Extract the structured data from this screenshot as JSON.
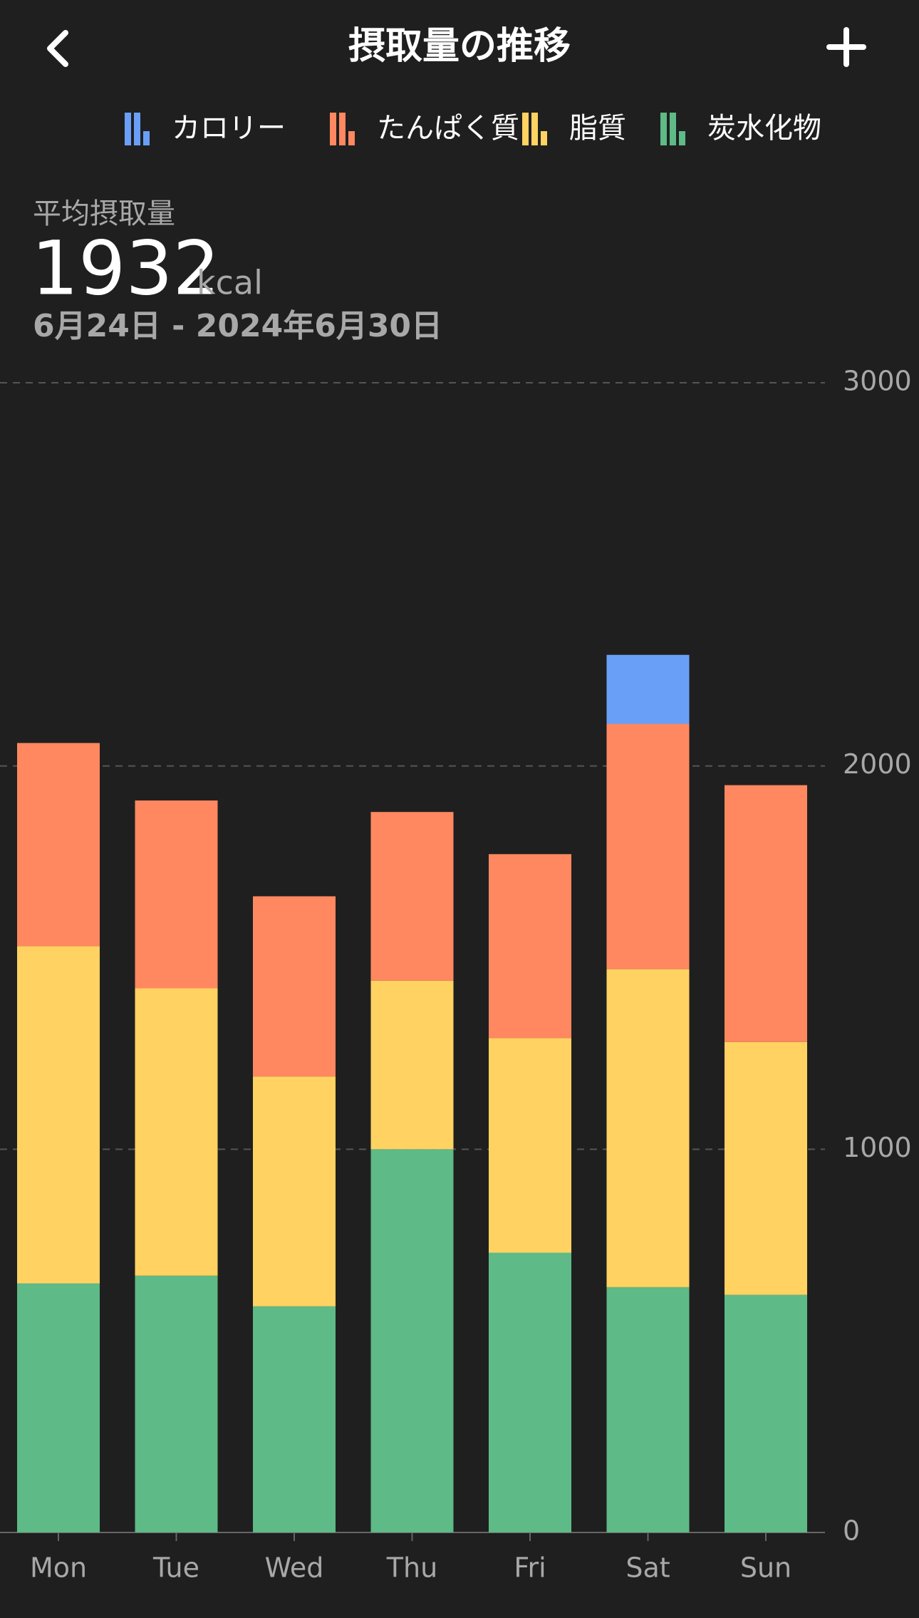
{
  "header": {
    "title": "摂取量の推移"
  },
  "summary": {
    "label": "平均摂取量",
    "value": "1932",
    "unit": "kcal",
    "range": "6月24日 - 2024年6月30日"
  },
  "chart_data": {
    "type": "bar",
    "stacked": true,
    "categories": [
      "Mon",
      "Tue",
      "Wed",
      "Thu",
      "Fri",
      "Sat",
      "Sun"
    ],
    "series": [
      {
        "name": "カロリー",
        "color": "#6a9ff8",
        "values": [
          null,
          null,
          null,
          null,
          null,
          180,
          null
        ]
      },
      {
        "name": "たんぱく質",
        "color": "#ff8860",
        "values": [
          530,
          490,
          470,
          440,
          480,
          640,
          670
        ]
      },
      {
        "name": "脂質",
        "color": "#ffd262",
        "values": [
          880,
          750,
          600,
          440,
          560,
          830,
          660
        ]
      },
      {
        "name": "炭水化物",
        "color": "#5eba86",
        "values": [
          650,
          670,
          590,
          1000,
          730,
          640,
          620
        ]
      }
    ],
    "ylim": [
      0,
      3000
    ],
    "yticks": [
      0,
      1000,
      2000,
      3000
    ],
    "grid": true
  }
}
